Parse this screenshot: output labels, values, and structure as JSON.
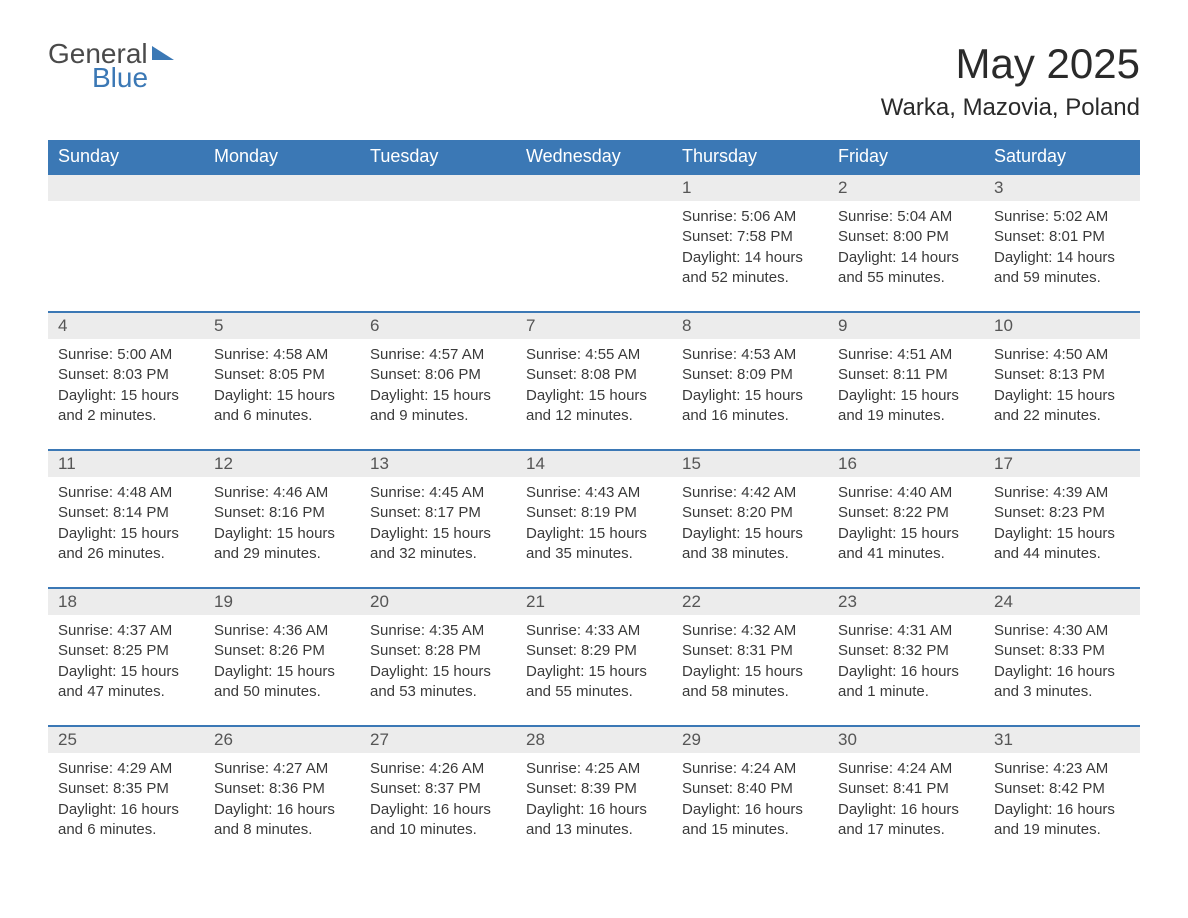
{
  "logo": {
    "line1": "General",
    "line2": "Blue"
  },
  "title": "May 2025",
  "location": "Warka, Mazovia, Poland",
  "colors": {
    "header_bg": "#3b78b5",
    "header_text": "#ffffff",
    "daynum_bg": "#ececec",
    "daynum_border": "#3b78b5",
    "body_text": "#3a3a3a",
    "page_bg": "#ffffff"
  },
  "weekdays": [
    "Sunday",
    "Monday",
    "Tuesday",
    "Wednesday",
    "Thursday",
    "Friday",
    "Saturday"
  ],
  "weeks": [
    [
      null,
      null,
      null,
      null,
      {
        "d": "1",
        "sr": "5:06 AM",
        "ss": "7:58 PM",
        "dl": "14 hours and 52 minutes."
      },
      {
        "d": "2",
        "sr": "5:04 AM",
        "ss": "8:00 PM",
        "dl": "14 hours and 55 minutes."
      },
      {
        "d": "3",
        "sr": "5:02 AM",
        "ss": "8:01 PM",
        "dl": "14 hours and 59 minutes."
      }
    ],
    [
      {
        "d": "4",
        "sr": "5:00 AM",
        "ss": "8:03 PM",
        "dl": "15 hours and 2 minutes."
      },
      {
        "d": "5",
        "sr": "4:58 AM",
        "ss": "8:05 PM",
        "dl": "15 hours and 6 minutes."
      },
      {
        "d": "6",
        "sr": "4:57 AM",
        "ss": "8:06 PM",
        "dl": "15 hours and 9 minutes."
      },
      {
        "d": "7",
        "sr": "4:55 AM",
        "ss": "8:08 PM",
        "dl": "15 hours and 12 minutes."
      },
      {
        "d": "8",
        "sr": "4:53 AM",
        "ss": "8:09 PM",
        "dl": "15 hours and 16 minutes."
      },
      {
        "d": "9",
        "sr": "4:51 AM",
        "ss": "8:11 PM",
        "dl": "15 hours and 19 minutes."
      },
      {
        "d": "10",
        "sr": "4:50 AM",
        "ss": "8:13 PM",
        "dl": "15 hours and 22 minutes."
      }
    ],
    [
      {
        "d": "11",
        "sr": "4:48 AM",
        "ss": "8:14 PM",
        "dl": "15 hours and 26 minutes."
      },
      {
        "d": "12",
        "sr": "4:46 AM",
        "ss": "8:16 PM",
        "dl": "15 hours and 29 minutes."
      },
      {
        "d": "13",
        "sr": "4:45 AM",
        "ss": "8:17 PM",
        "dl": "15 hours and 32 minutes."
      },
      {
        "d": "14",
        "sr": "4:43 AM",
        "ss": "8:19 PM",
        "dl": "15 hours and 35 minutes."
      },
      {
        "d": "15",
        "sr": "4:42 AM",
        "ss": "8:20 PM",
        "dl": "15 hours and 38 minutes."
      },
      {
        "d": "16",
        "sr": "4:40 AM",
        "ss": "8:22 PM",
        "dl": "15 hours and 41 minutes."
      },
      {
        "d": "17",
        "sr": "4:39 AM",
        "ss": "8:23 PM",
        "dl": "15 hours and 44 minutes."
      }
    ],
    [
      {
        "d": "18",
        "sr": "4:37 AM",
        "ss": "8:25 PM",
        "dl": "15 hours and 47 minutes."
      },
      {
        "d": "19",
        "sr": "4:36 AM",
        "ss": "8:26 PM",
        "dl": "15 hours and 50 minutes."
      },
      {
        "d": "20",
        "sr": "4:35 AM",
        "ss": "8:28 PM",
        "dl": "15 hours and 53 minutes."
      },
      {
        "d": "21",
        "sr": "4:33 AM",
        "ss": "8:29 PM",
        "dl": "15 hours and 55 minutes."
      },
      {
        "d": "22",
        "sr": "4:32 AM",
        "ss": "8:31 PM",
        "dl": "15 hours and 58 minutes."
      },
      {
        "d": "23",
        "sr": "4:31 AM",
        "ss": "8:32 PM",
        "dl": "16 hours and 1 minute."
      },
      {
        "d": "24",
        "sr": "4:30 AM",
        "ss": "8:33 PM",
        "dl": "16 hours and 3 minutes."
      }
    ],
    [
      {
        "d": "25",
        "sr": "4:29 AM",
        "ss": "8:35 PM",
        "dl": "16 hours and 6 minutes."
      },
      {
        "d": "26",
        "sr": "4:27 AM",
        "ss": "8:36 PM",
        "dl": "16 hours and 8 minutes."
      },
      {
        "d": "27",
        "sr": "4:26 AM",
        "ss": "8:37 PM",
        "dl": "16 hours and 10 minutes."
      },
      {
        "d": "28",
        "sr": "4:25 AM",
        "ss": "8:39 PM",
        "dl": "16 hours and 13 minutes."
      },
      {
        "d": "29",
        "sr": "4:24 AM",
        "ss": "8:40 PM",
        "dl": "16 hours and 15 minutes."
      },
      {
        "d": "30",
        "sr": "4:24 AM",
        "ss": "8:41 PM",
        "dl": "16 hours and 17 minutes."
      },
      {
        "d": "31",
        "sr": "4:23 AM",
        "ss": "8:42 PM",
        "dl": "16 hours and 19 minutes."
      }
    ]
  ],
  "labels": {
    "sunrise": "Sunrise: ",
    "sunset": "Sunset: ",
    "daylight": "Daylight: "
  }
}
